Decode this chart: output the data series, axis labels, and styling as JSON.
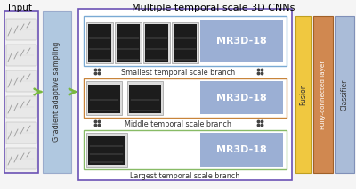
{
  "title": "Multiple temporal scale 3D CNNs",
  "input_label": "Input",
  "gradient_label": "Gradient adaptive sampling",
  "fusion_label": "Fusion",
  "fc_label": "Fully-connected layer",
  "classifier_label": "Classifier",
  "branch_labels": [
    "Smallest temporal scale branch",
    "Middle temporal scale branch",
    "Largest temporal scale branch"
  ],
  "mr3d_label": "MR3D-18",
  "colors": {
    "outer_box": "#6b52b5",
    "gradient_box": "#b0c8e0",
    "mr3d_box": "#9bafd4",
    "inner_frame_top": "#7aaad4",
    "inner_frame_mid": "#c8843a",
    "inner_frame_bot": "#88bb66",
    "fusion_color": "#f0c840",
    "fc_color": "#d08850",
    "classifier_color": "#aabcd8",
    "input_box_border": "#6b52b5",
    "input_box_bg": "#f0f0f0",
    "background": "#f5f5f5",
    "dots_color": "#444444",
    "arrow_color": "#78b840"
  },
  "figsize": [
    4.0,
    2.12
  ],
  "dpi": 100
}
